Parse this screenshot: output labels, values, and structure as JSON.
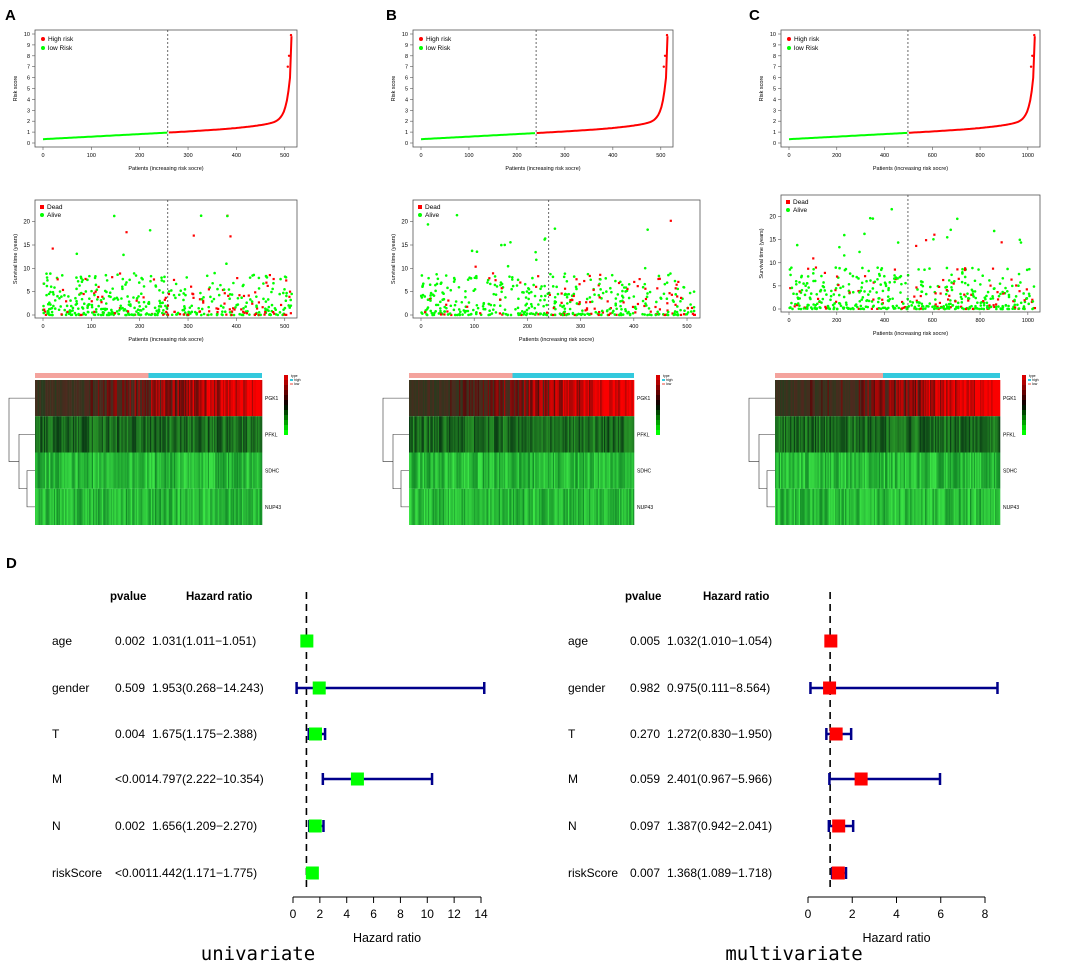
{
  "panels": {
    "labels": [
      "A",
      "B",
      "C"
    ],
    "forest_label": "D",
    "risk_plots": [
      {
        "n": 515,
        "cutoff": 258,
        "xticks": [
          0,
          100,
          200,
          300,
          400,
          500
        ],
        "yticks": [
          0,
          1,
          2,
          3,
          4,
          5,
          6,
          7,
          8,
          9,
          10
        ],
        "xlabel": "Patients (increasing risk socre)",
        "ylabel": "Risk score",
        "legend": [
          "High risk",
          "low Risk"
        ]
      },
      {
        "n": 515,
        "cutoff": 240,
        "xticks": [
          0,
          100,
          200,
          300,
          400,
          500
        ],
        "yticks": [
          0,
          1,
          2,
          3,
          4,
          5,
          6,
          7,
          8,
          9,
          10
        ],
        "xlabel": "Patients (increasing risk socre)",
        "ylabel": "Risk score",
        "legend": [
          "High risk",
          "low Risk"
        ]
      },
      {
        "n": 1030,
        "cutoff": 498,
        "xticks": [
          0,
          200,
          400,
          600,
          800,
          1000
        ],
        "yticks": [
          0,
          1,
          2,
          3,
          4,
          5,
          6,
          7,
          8,
          9,
          10
        ],
        "xlabel": "Patients (increasing risk socre)",
        "ylabel": "Risk score",
        "legend": [
          "High risk",
          "low Risk"
        ]
      }
    ],
    "survival_plots": [
      {
        "n": 515,
        "cutoff": 258,
        "xticks": [
          0,
          100,
          200,
          300,
          400,
          500
        ],
        "yticks": [
          0,
          5,
          10,
          15,
          20
        ],
        "ymax": 24,
        "xlabel": "Patients (increasing risk socre)",
        "ylabel": "Survival time (years)",
        "legend": [
          "Dead",
          "Alive"
        ]
      },
      {
        "n": 515,
        "cutoff": 240,
        "xticks": [
          0,
          100,
          200,
          300,
          400,
          500
        ],
        "yticks": [
          0,
          5,
          10,
          15,
          20
        ],
        "ymax": 24,
        "xlabel": "Patients (increasing risk socre)",
        "ylabel": "Survival time (years)",
        "legend": [
          "Dead",
          "Alive"
        ]
      },
      {
        "n": 1030,
        "cutoff": 498,
        "xticks": [
          0,
          200,
          400,
          600,
          800,
          1000
        ],
        "yticks": [
          0,
          5,
          10,
          15,
          20
        ],
        "ymax": 24,
        "xlabel": "Patients (increasing risk socre)",
        "ylabel": "Survival time (years)",
        "legend": [
          "Dead",
          "Alive"
        ]
      }
    ],
    "heatmaps": [
      {
        "genes": [
          "PGK1",
          "PFKL",
          "SDHC",
          "NUP43"
        ],
        "low_fraction": 0.5,
        "legend_title": "type",
        "legend_items": [
          "high",
          "low"
        ]
      },
      {
        "genes": [
          "PGK1",
          "PFKL",
          "SDHC",
          "NUP43"
        ],
        "low_fraction": 0.46,
        "legend_title": "type",
        "legend_items": [
          "high",
          "low"
        ]
      },
      {
        "genes": [
          "PGK1",
          "PFKL",
          "SDHC",
          "NUP43"
        ],
        "low_fraction": 0.48,
        "legend_title": "type",
        "legend_items": [
          "high",
          "low"
        ]
      }
    ]
  },
  "colors": {
    "high": "#ff0000",
    "low": "#00ff00",
    "bar_red": "#d73027",
    "bar_cyan": "#33c9dd",
    "bar_salmon": "#f4a39d",
    "ci_line": "#00008b",
    "box_uni": "#00ff00",
    "box_multi": "#ff0000"
  },
  "chart_data": [
    {
      "type": "forest",
      "title": "univariate",
      "xlabel": "Hazard ratio",
      "xlim": [
        0,
        14
      ],
      "xticks": [
        0,
        2,
        4,
        6,
        8,
        10,
        12,
        14
      ],
      "reference": 1,
      "headers": {
        "pvalue": "pvalue",
        "hr": "Hazard ratio"
      },
      "rows": [
        {
          "name": "age",
          "pvalue": "0.002",
          "hr_text": "1.031(1.011−1.051)",
          "hr": 1.031,
          "lo": 1.011,
          "hi": 1.051
        },
        {
          "name": "gender",
          "pvalue": "0.509",
          "hr_text": "1.953(0.268−14.243)",
          "hr": 1.953,
          "lo": 0.268,
          "hi": 14.243
        },
        {
          "name": "T",
          "pvalue": "0.004",
          "hr_text": "1.675(1.175−2.388)",
          "hr": 1.675,
          "lo": 1.175,
          "hi": 2.388
        },
        {
          "name": "M",
          "pvalue": "<0.001",
          "hr_text": "4.797(2.222−10.354)",
          "hr": 4.797,
          "lo": 2.222,
          "hi": 10.354
        },
        {
          "name": "N",
          "pvalue": "0.002",
          "hr_text": "1.656(1.209−2.270)",
          "hr": 1.656,
          "lo": 1.209,
          "hi": 2.27
        },
        {
          "name": "riskScore",
          "pvalue": "<0.001",
          "hr_text": "1.442(1.171−1.775)",
          "hr": 1.442,
          "lo": 1.171,
          "hi": 1.775
        }
      ]
    },
    {
      "type": "forest",
      "title": "multivariate",
      "xlabel": "Hazard ratio",
      "xlim": [
        0,
        8
      ],
      "xticks": [
        0,
        2,
        4,
        6,
        8
      ],
      "reference": 1,
      "headers": {
        "pvalue": "pvalue",
        "hr": "Hazard ratio"
      },
      "rows": [
        {
          "name": "age",
          "pvalue": "0.005",
          "hr_text": "1.032(1.010−1.054)",
          "hr": 1.032,
          "lo": 1.01,
          "hi": 1.054
        },
        {
          "name": "gender",
          "pvalue": "0.982",
          "hr_text": "0.975(0.111−8.564)",
          "hr": 0.975,
          "lo": 0.111,
          "hi": 8.564
        },
        {
          "name": "T",
          "pvalue": "0.270",
          "hr_text": "1.272(0.830−1.950)",
          "hr": 1.272,
          "lo": 0.83,
          "hi": 1.95
        },
        {
          "name": "M",
          "pvalue": "0.059",
          "hr_text": "2.401(0.967−5.966)",
          "hr": 2.401,
          "lo": 0.967,
          "hi": 5.966
        },
        {
          "name": "N",
          "pvalue": "0.097",
          "hr_text": "1.387(0.942−2.041)",
          "hr": 1.387,
          "lo": 0.942,
          "hi": 2.041
        },
        {
          "name": "riskScore",
          "pvalue": "0.007",
          "hr_text": "1.368(1.089−1.718)",
          "hr": 1.368,
          "lo": 1.089,
          "hi": 1.718
        }
      ]
    }
  ]
}
